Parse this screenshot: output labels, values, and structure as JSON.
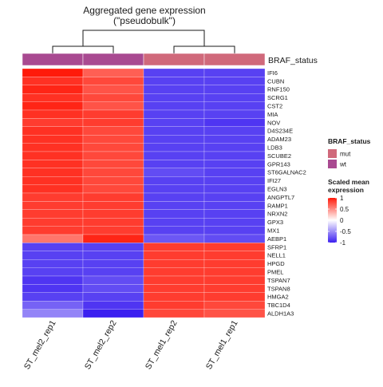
{
  "chart_data": {
    "type": "heatmap",
    "title": [
      "Aggregated gene expression",
      "(\"pseudobulk\")"
    ],
    "annotation_name": "BRAF_status",
    "samples": [
      "ST_mel2_rep1",
      "ST_mel2_rep2",
      "ST_mel1_rep2",
      "ST_mel1_rep1"
    ],
    "sample_status": [
      "wt",
      "wt",
      "mut",
      "mut"
    ],
    "status_legend": {
      "title": "BRAF_status",
      "entries": [
        {
          "label": "mut",
          "color": "#d0697b"
        },
        {
          "label": "wt",
          "color": "#a94a91"
        }
      ]
    },
    "color_scale": {
      "title": [
        "Scaled mean",
        "expression"
      ],
      "low": "#3b1ff0",
      "mid": "#ffffff",
      "high": "#ff1a0a",
      "ticks": [
        1,
        0.5,
        0,
        -0.5,
        -1
      ],
      "tick_labels": [
        "1",
        "0.5",
        "0",
        "-0.5",
        "-1"
      ]
    },
    "genes": [
      "IFI6",
      "CUBN",
      "RNF150",
      "SCRG1",
      "CST2",
      "MIA",
      "NOV",
      "D4S234E",
      "ADAM23",
      "LDB3",
      "SCUBE2",
      "GPR143",
      "ST6GALNAC2",
      "IFI27",
      "EGLN3",
      "ANGPTL7",
      "RAMP1",
      "NRXN2",
      "GPX3",
      "MX1",
      "AEBP1",
      "SFRP1",
      "NELL1",
      "HPGD",
      "PMEL",
      "TSPAN7",
      "TSPAN8",
      "HMGA2",
      "TBC1D4",
      "ALDH1A3"
    ],
    "values": [
      [
        1.0,
        0.7,
        -0.85,
        -0.85
      ],
      [
        0.9,
        0.8,
        -0.85,
        -0.85
      ],
      [
        0.95,
        0.75,
        -0.85,
        -0.85
      ],
      [
        0.9,
        0.8,
        -0.85,
        -0.85
      ],
      [
        0.95,
        0.75,
        -0.85,
        -0.85
      ],
      [
        0.9,
        0.85,
        -0.85,
        -0.85
      ],
      [
        0.85,
        0.85,
        -0.85,
        -0.9
      ],
      [
        0.9,
        0.8,
        -0.85,
        -0.85
      ],
      [
        0.9,
        0.8,
        -0.85,
        -0.85
      ],
      [
        0.9,
        0.8,
        -0.85,
        -0.85
      ],
      [
        0.9,
        0.8,
        -0.85,
        -0.85
      ],
      [
        0.9,
        0.8,
        -0.85,
        -0.85
      ],
      [
        0.9,
        0.8,
        -0.8,
        -0.85
      ],
      [
        0.9,
        0.8,
        -0.85,
        -0.85
      ],
      [
        0.9,
        0.8,
        -0.85,
        -0.85
      ],
      [
        0.85,
        0.85,
        -0.85,
        -0.85
      ],
      [
        0.85,
        0.85,
        -0.85,
        -0.85
      ],
      [
        0.85,
        0.85,
        -0.85,
        -0.85
      ],
      [
        0.85,
        0.85,
        -0.85,
        -0.85
      ],
      [
        0.85,
        0.85,
        -0.85,
        -0.85
      ],
      [
        0.6,
        0.95,
        -0.75,
        -0.8
      ],
      [
        -0.85,
        -0.85,
        0.85,
        0.85
      ],
      [
        -0.85,
        -0.85,
        0.85,
        0.85
      ],
      [
        -0.85,
        -0.85,
        0.85,
        0.85
      ],
      [
        -0.85,
        -0.85,
        0.85,
        0.85
      ],
      [
        -0.9,
        -0.8,
        0.85,
        0.85
      ],
      [
        -0.9,
        -0.8,
        0.85,
        0.85
      ],
      [
        -0.85,
        -0.85,
        0.85,
        0.85
      ],
      [
        -0.7,
        -0.9,
        0.85,
        0.8
      ],
      [
        -0.55,
        -1.0,
        0.8,
        0.75
      ]
    ],
    "column_dendrogram": [
      {
        "left": "ST_mel2_rep1",
        "right": "ST_mel2_rep2"
      },
      {
        "left": "ST_mel1_rep2",
        "right": "ST_mel1_rep1"
      },
      {
        "left": "wt group",
        "right": "mut group"
      }
    ]
  }
}
